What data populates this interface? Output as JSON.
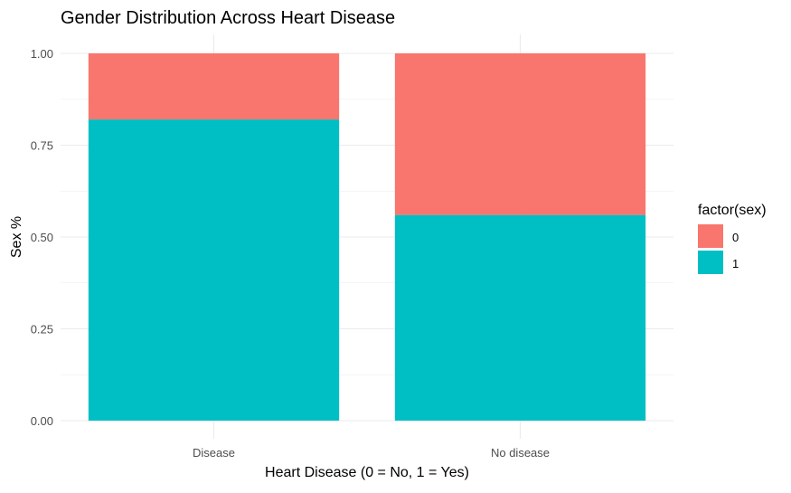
{
  "chart_data": {
    "type": "bar",
    "stacked": "fill",
    "title": "Gender Distribution Across Heart Disease",
    "xlabel": "Heart Disease (0 = No, 1 = Yes)",
    "ylabel": "Sex %",
    "categories": [
      "Disease",
      "No disease"
    ],
    "series": [
      {
        "name": "1",
        "color": "#00BFC4",
        "values": [
          0.82,
          0.56
        ]
      },
      {
        "name": "0",
        "color": "#F8766D",
        "values": [
          0.18,
          0.44
        ]
      }
    ],
    "ylim": [
      0,
      1
    ],
    "yticks": [
      0,
      0.25,
      0.5,
      0.75,
      1
    ],
    "ytick_labels": [
      "0.00",
      "0.25",
      "0.50",
      "0.75",
      "1.00"
    ],
    "legend": {
      "title": "factor(sex)",
      "position": "right",
      "entries": [
        {
          "label": "0",
          "color": "#F8766D"
        },
        {
          "label": "1",
          "color": "#00BFC4"
        }
      ]
    },
    "grid": true
  }
}
